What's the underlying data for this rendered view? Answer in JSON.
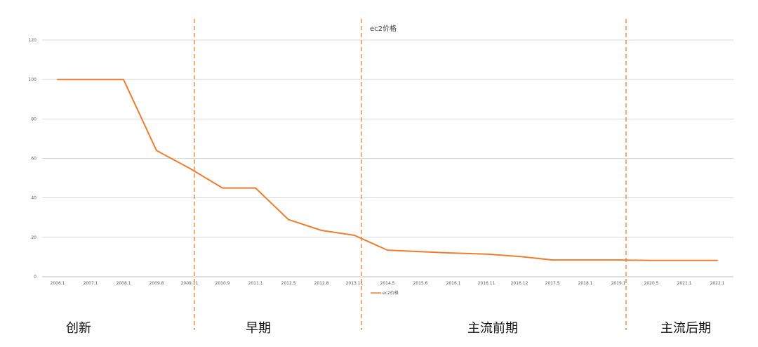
{
  "chart_data": {
    "type": "line",
    "title": "ec2价格",
    "xlabel": "",
    "ylabel": "",
    "ylim": [
      0,
      120
    ],
    "yticks": [
      0,
      20,
      40,
      60,
      80,
      100,
      120
    ],
    "grid": true,
    "legend_position": "bottom",
    "x": [
      "2006.1",
      "2007.1",
      "2008.1",
      "2009.8",
      "2009.11",
      "2010.9",
      "2011.1",
      "2012.5",
      "2012.8",
      "2013.11",
      "2014.5",
      "2015.6",
      "2016.1",
      "2016.11",
      "2016.12",
      "2017.5",
      "2018.1",
      "2019.1",
      "2020.5",
      "2021.1",
      "2022.1"
    ],
    "series": [
      {
        "name": "ec2价格",
        "color": "#ED7D31",
        "values": [
          100,
          100,
          100,
          64,
          55,
          45,
          45,
          29,
          23.5,
          21,
          13.5,
          12.7,
          12,
          11.5,
          10.3,
          8.5,
          8.5,
          8.5,
          8.3,
          8.3,
          8.3
        ]
      }
    ],
    "phase_dividers": [
      "2009.11",
      "2013.11",
      "2019.1"
    ],
    "phases": [
      "创新",
      "早期",
      "主流前期",
      "主流后期"
    ]
  }
}
